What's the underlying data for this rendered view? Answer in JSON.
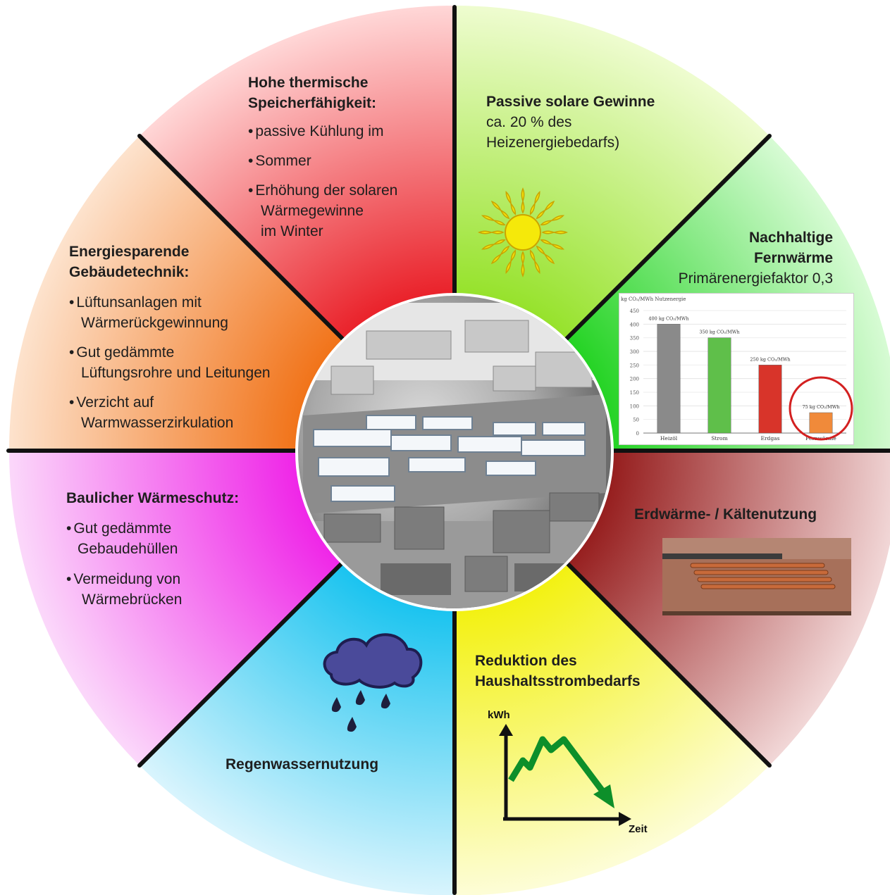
{
  "colors": {
    "red": "#f24848",
    "green_top": "#b9ef50",
    "green_right": "#3ff23a",
    "darkred": "#b82020",
    "yellow": "#f8f63a",
    "cyan": "#27c8f2",
    "magenta": "#f44df0",
    "orange": "#f57c1f",
    "divider": "#111111",
    "sun": "#f5e90a",
    "sun_outline": "#c9a300",
    "cloud": "#4a4a9a",
    "arrow": "#0d8f2a"
  },
  "icons": {
    "sun": "sun-icon",
    "cloud": "rain-cloud-icon",
    "arrow": "descending-trend-arrow-icon"
  },
  "segments": {
    "thermal": {
      "title_1": "Hohe thermische",
      "title_2": "Speicherfähigkeit:",
      "bullet_1": "passive Kühlung im",
      "bullet_2": "Sommer",
      "bullet_3": "Erhöhung der solaren",
      "bullet_3b": "Wärmegewinne",
      "bullet_3c": "im Winter"
    },
    "solar": {
      "title": "Passive solare Gewinne",
      "line_1": "ca. 20  % des",
      "line_2": "Heizenergiebedarfs)"
    },
    "district": {
      "title_1": "Nachhaltige",
      "title_2": "Fernwärme",
      "line_1": "Primärenergiefaktor 0,3"
    },
    "geothermal": {
      "title": "Erdwärme- / Kältenutzung"
    },
    "household": {
      "title_1": "Reduktion des",
      "title_2": "Haushaltsstrombedarfs",
      "y_label": "kWh",
      "x_label": "Zeit"
    },
    "rain": {
      "title": "Regenwassernutzung"
    },
    "insulation": {
      "title": "Baulicher Wärmeschutz:",
      "bullet_1": "Gut gedämmte",
      "bullet_1b": "Gebaudehüllen",
      "bullet_2": "Vermeidung von",
      "bullet_2b": "Wärmebrücken"
    },
    "tech": {
      "title_1": "Energiesparende",
      "title_2": "Gebäudetechnik:",
      "bullet_1": "Lüftunsanlagen mit",
      "bullet_1b": "Wärmerückgewinnung",
      "bullet_2": "Gut gedämmte",
      "bullet_2b": "Lüftungsrohre und  Leitungen",
      "bullet_3": "Verzicht auf",
      "bullet_3b": "Warmwasserzirkulation"
    }
  },
  "chart_data": {
    "type": "bar",
    "ylabel": "kg CO₂/MWh Nutzenergie",
    "categories": [
      "Heizöl",
      "Strom",
      "Erdgas",
      "Fernwärme"
    ],
    "values": [
      400,
      350,
      250,
      75
    ],
    "data_labels": [
      "400 kg CO₂/MWh",
      "350 kg CO₂/MWh",
      "250 kg CO₂/MWh",
      "75 kg CO₂/MWh"
    ],
    "ylim": [
      0,
      450
    ],
    "yticks": [
      "0",
      "50",
      "100",
      "150",
      "200",
      "250",
      "300",
      "350",
      "400",
      "450"
    ],
    "colors": [
      "#8a8a8a",
      "#5fbf4a",
      "#d8342a",
      "#f08a3a"
    ],
    "grid": true,
    "highlight": "Fernwärme"
  }
}
